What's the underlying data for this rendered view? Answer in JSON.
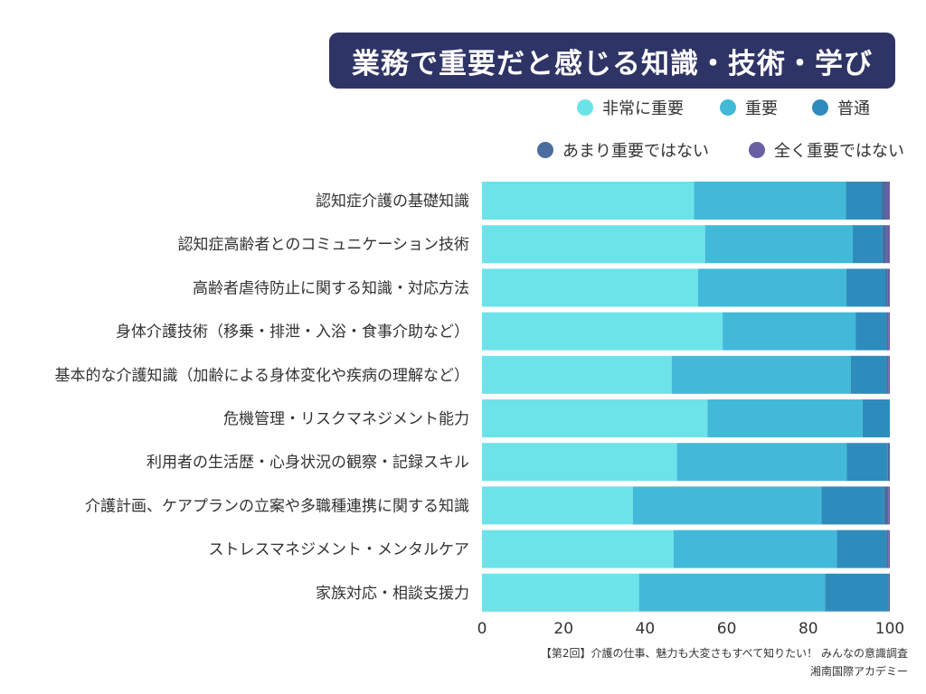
{
  "colors": {
    "title_bg": "#2f3466",
    "series": [
      "#6ce3e9",
      "#43b9d9",
      "#2e8cbd",
      "#4a6c9e",
      "#6b5fa3"
    ]
  },
  "source": {
    "line1": "【第2回】介護の仕事、魅力も大変さもすべて知りたい！ みんなの意識調査",
    "line2": "湘南国際アカデミー"
  },
  "chart_data": {
    "type": "bar",
    "orientation": "horizontal",
    "stacked": true,
    "title": "業務で重要だと感じる知識・技術・学び",
    "xlabel": "",
    "ylabel": "",
    "xlim": [
      0,
      100
    ],
    "xticks": [
      "0",
      "20",
      "40",
      "60",
      "80",
      "100"
    ],
    "legend_position": "top-right",
    "grid": false,
    "categories": [
      "認知症介護の基礎知識",
      "認知症高齢者とのコミュニケーション技術",
      "高齢者虐待防止に関する知識・対応方法",
      "身体介護技術（移乗・排泄・入浴・食事介助など）",
      "基本的な介護知識（加齢による身体変化や疾病の理解など）",
      "危機管理・リスクマネジメント能力",
      "利用者の生活歴・心身状況の観察・記録スキル",
      "介護計画、ケアプランの立案や多職種連携に関する知識",
      "ストレスマネジメント・メンタルケア",
      "家族対応・相談支援力"
    ],
    "series": [
      {
        "name": "非常に重要",
        "values": [
          52,
          54.7,
          53,
          59,
          46.5,
          55.3,
          47.8,
          37,
          47,
          38.5
        ]
      },
      {
        "name": "重要",
        "values": [
          37.2,
          36.2,
          36.3,
          32.6,
          43.9,
          38,
          41.6,
          46.2,
          40,
          45.6
        ]
      },
      {
        "name": "普通",
        "values": [
          8.8,
          7.3,
          9.7,
          7.6,
          8.8,
          6.7,
          10.1,
          15.4,
          12.2,
          15.5
        ]
      },
      {
        "name": "あまり重要ではない",
        "values": [
          1,
          1,
          0.5,
          0.4,
          0.4,
          0,
          0.5,
          1,
          0.4,
          0.4
        ]
      },
      {
        "name": "全く重要ではない",
        "values": [
          1,
          0.8,
          0.5,
          0.4,
          0.4,
          0,
          0,
          0.4,
          0.4,
          0
        ]
      }
    ]
  }
}
